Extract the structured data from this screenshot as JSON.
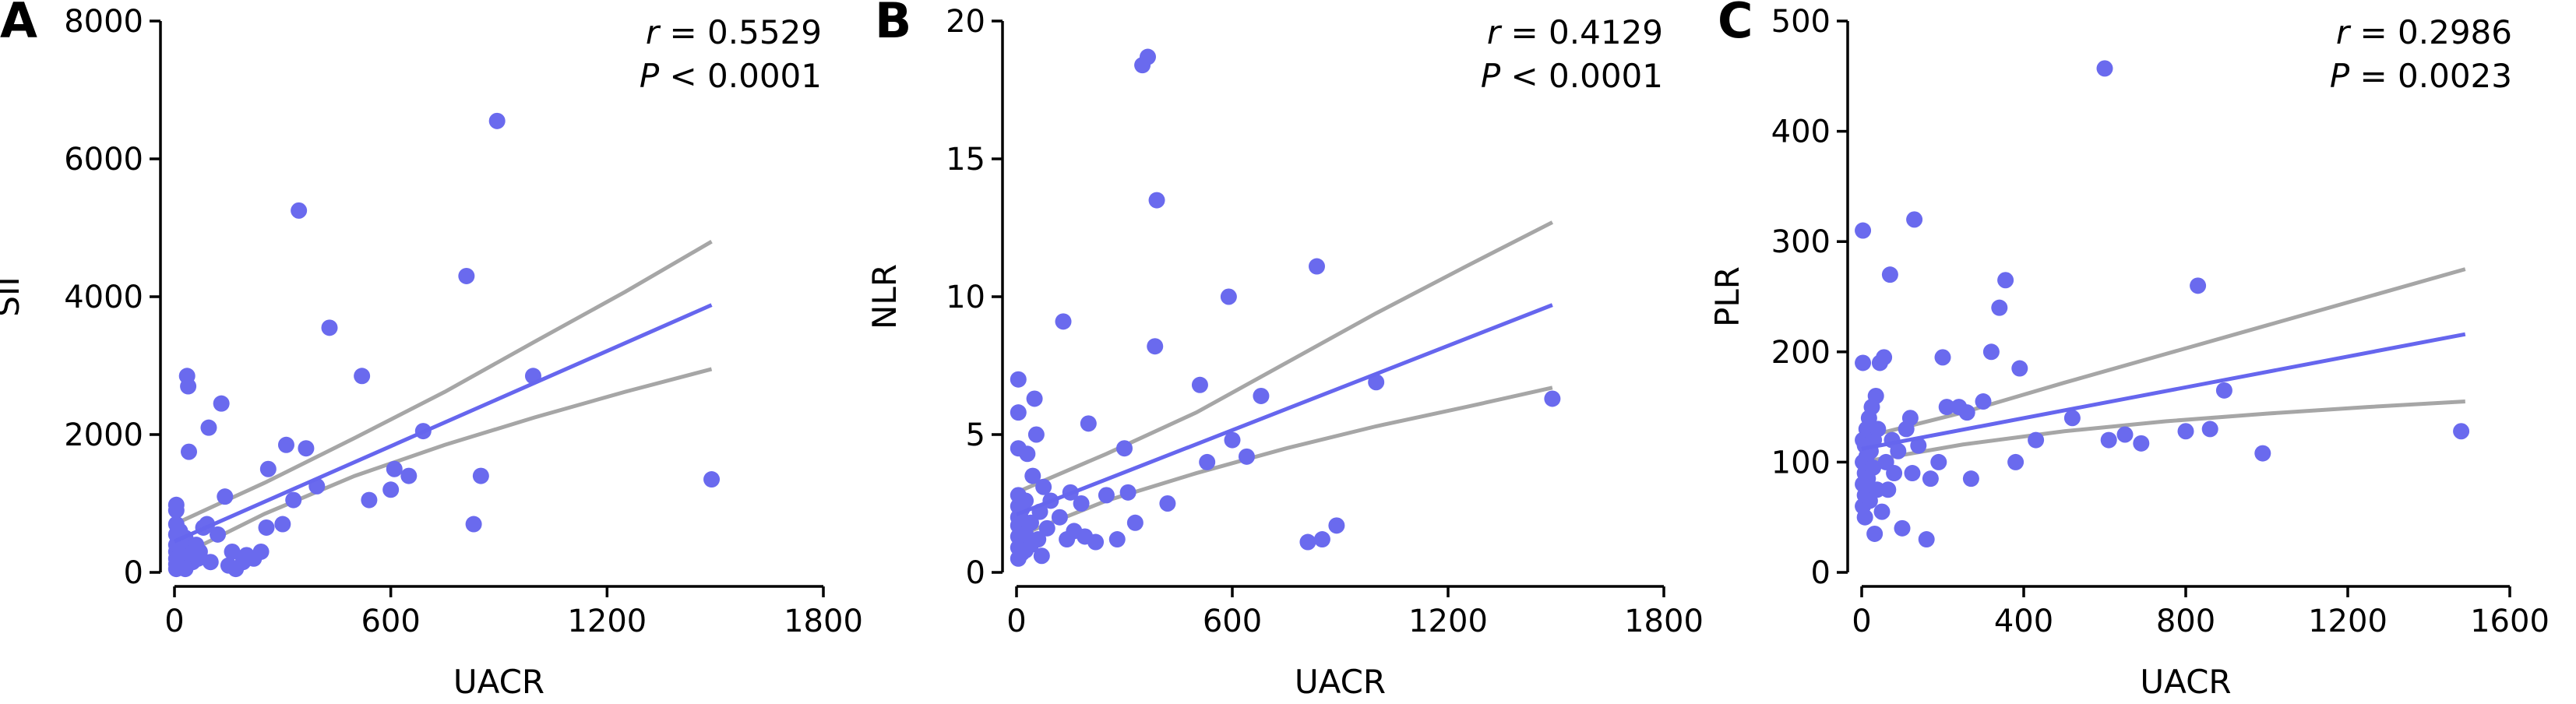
{
  "colors": {
    "points": "#6a6aee",
    "fit_line": "#6666ee",
    "ci_band": "#a6a6a6",
    "axis": "#000000"
  },
  "chart_data": [
    {
      "panel": "A",
      "type": "scatter",
      "xlabel": "UACR",
      "ylabel": "SII",
      "xlim": [
        0,
        1800
      ],
      "ylim": [
        0,
        8000
      ],
      "xticks": [
        "0",
        "600",
        "1200",
        "1800"
      ],
      "yticks": [
        "0",
        "2000",
        "4000",
        "6000",
        "8000"
      ],
      "stats": {
        "r_label": "r",
        "r_value": "= 0.5529",
        "p_label": "P",
        "p_value": "< 0.0001"
      },
      "fit": {
        "x": [
          0,
          1490
        ],
        "y": [
          450,
          3880
        ]
      },
      "ci_upper": {
        "x": [
          0,
          250,
          500,
          750,
          1000,
          1250,
          1490
        ],
        "y": [
          700,
          1300,
          1950,
          2620,
          3350,
          4070,
          4800
        ]
      },
      "ci_lower": {
        "x": [
          0,
          250,
          500,
          750,
          1000,
          1250,
          1490
        ],
        "y": [
          200,
          850,
          1400,
          1850,
          2250,
          2620,
          2950
        ]
      },
      "points": [
        {
          "x": 5,
          "y": 50
        },
        {
          "x": 5,
          "y": 120
        },
        {
          "x": 5,
          "y": 200
        },
        {
          "x": 5,
          "y": 300
        },
        {
          "x": 5,
          "y": 400
        },
        {
          "x": 5,
          "y": 550
        },
        {
          "x": 5,
          "y": 700
        },
        {
          "x": 5,
          "y": 900
        },
        {
          "x": 5,
          "y": 980
        },
        {
          "x": 15,
          "y": 80
        },
        {
          "x": 15,
          "y": 250
        },
        {
          "x": 15,
          "y": 350
        },
        {
          "x": 15,
          "y": 450
        },
        {
          "x": 15,
          "y": 600
        },
        {
          "x": 25,
          "y": 150
        },
        {
          "x": 25,
          "y": 300
        },
        {
          "x": 30,
          "y": 50
        },
        {
          "x": 30,
          "y": 500
        },
        {
          "x": 35,
          "y": 2850
        },
        {
          "x": 38,
          "y": 2700
        },
        {
          "x": 40,
          "y": 1750
        },
        {
          "x": 45,
          "y": 250
        },
        {
          "x": 50,
          "y": 150
        },
        {
          "x": 60,
          "y": 400
        },
        {
          "x": 65,
          "y": 200
        },
        {
          "x": 70,
          "y": 300
        },
        {
          "x": 80,
          "y": 650
        },
        {
          "x": 90,
          "y": 700
        },
        {
          "x": 95,
          "y": 2100
        },
        {
          "x": 100,
          "y": 150
        },
        {
          "x": 120,
          "y": 550
        },
        {
          "x": 130,
          "y": 2450
        },
        {
          "x": 140,
          "y": 1100
        },
        {
          "x": 150,
          "y": 100
        },
        {
          "x": 160,
          "y": 300
        },
        {
          "x": 170,
          "y": 50
        },
        {
          "x": 190,
          "y": 150
        },
        {
          "x": 200,
          "y": 250
        },
        {
          "x": 220,
          "y": 200
        },
        {
          "x": 240,
          "y": 300
        },
        {
          "x": 255,
          "y": 650
        },
        {
          "x": 260,
          "y": 1500
        },
        {
          "x": 300,
          "y": 700
        },
        {
          "x": 310,
          "y": 1850
        },
        {
          "x": 330,
          "y": 1050
        },
        {
          "x": 345,
          "y": 5250
        },
        {
          "x": 365,
          "y": 1800
        },
        {
          "x": 395,
          "y": 1250
        },
        {
          "x": 430,
          "y": 3550
        },
        {
          "x": 520,
          "y": 2850
        },
        {
          "x": 540,
          "y": 1050
        },
        {
          "x": 600,
          "y": 1200
        },
        {
          "x": 610,
          "y": 1500
        },
        {
          "x": 650,
          "y": 1400
        },
        {
          "x": 690,
          "y": 2050
        },
        {
          "x": 810,
          "y": 4300
        },
        {
          "x": 830,
          "y": 700
        },
        {
          "x": 850,
          "y": 1400
        },
        {
          "x": 895,
          "y": 6550
        },
        {
          "x": 995,
          "y": 2850
        },
        {
          "x": 1490,
          "y": 1350
        }
      ]
    },
    {
      "panel": "B",
      "type": "scatter",
      "xlabel": "UACR",
      "ylabel": "NLR",
      "xlim": [
        0,
        1800
      ],
      "ylim": [
        0,
        20
      ],
      "xticks": [
        "0",
        "600",
        "1200",
        "1800"
      ],
      "yticks": [
        "0",
        "5",
        "10",
        "15",
        "20"
      ],
      "stats": {
        "r_label": "r",
        "r_value": "= 0.4129",
        "p_label": "P",
        "p_value": "< 0.0001"
      },
      "fit": {
        "x": [
          0,
          1490
        ],
        "y": [
          2.1,
          9.7
        ]
      },
      "ci_upper": {
        "x": [
          0,
          250,
          500,
          750,
          1000,
          1250,
          1490
        ],
        "y": [
          2.9,
          4.3,
          5.8,
          7.6,
          9.4,
          11.1,
          12.7
        ]
      },
      "ci_lower": {
        "x": [
          0,
          250,
          500,
          750,
          1000,
          1250,
          1490
        ],
        "y": [
          1.3,
          2.6,
          3.6,
          4.5,
          5.3,
          6.0,
          6.7
        ]
      },
      "points": [
        {
          "x": 5,
          "y": 0.5
        },
        {
          "x": 5,
          "y": 0.9
        },
        {
          "x": 5,
          "y": 1.3
        },
        {
          "x": 5,
          "y": 1.7
        },
        {
          "x": 5,
          "y": 2.0
        },
        {
          "x": 5,
          "y": 2.4
        },
        {
          "x": 5,
          "y": 2.8
        },
        {
          "x": 5,
          "y": 4.5
        },
        {
          "x": 5,
          "y": 5.8
        },
        {
          "x": 5,
          "y": 7.0
        },
        {
          "x": 15,
          "y": 0.7
        },
        {
          "x": 15,
          "y": 1.1
        },
        {
          "x": 15,
          "y": 1.5
        },
        {
          "x": 15,
          "y": 1.9
        },
        {
          "x": 15,
          "y": 2.3
        },
        {
          "x": 25,
          "y": 0.8
        },
        {
          "x": 25,
          "y": 1.4
        },
        {
          "x": 25,
          "y": 2.6
        },
        {
          "x": 30,
          "y": 4.3
        },
        {
          "x": 40,
          "y": 1.0
        },
        {
          "x": 40,
          "y": 1.8
        },
        {
          "x": 45,
          "y": 3.5
        },
        {
          "x": 50,
          "y": 6.3
        },
        {
          "x": 55,
          "y": 5.0
        },
        {
          "x": 60,
          "y": 1.2
        },
        {
          "x": 65,
          "y": 2.2
        },
        {
          "x": 70,
          "y": 0.6
        },
        {
          "x": 75,
          "y": 3.1
        },
        {
          "x": 85,
          "y": 1.6
        },
        {
          "x": 95,
          "y": 2.6
        },
        {
          "x": 120,
          "y": 2.0
        },
        {
          "x": 130,
          "y": 9.1
        },
        {
          "x": 140,
          "y": 1.2
        },
        {
          "x": 150,
          "y": 2.9
        },
        {
          "x": 160,
          "y": 1.5
        },
        {
          "x": 180,
          "y": 2.5
        },
        {
          "x": 190,
          "y": 1.3
        },
        {
          "x": 200,
          "y": 5.4
        },
        {
          "x": 220,
          "y": 1.1
        },
        {
          "x": 250,
          "y": 2.8
        },
        {
          "x": 280,
          "y": 1.2
        },
        {
          "x": 300,
          "y": 4.5
        },
        {
          "x": 310,
          "y": 2.9
        },
        {
          "x": 330,
          "y": 1.8
        },
        {
          "x": 350,
          "y": 18.4
        },
        {
          "x": 365,
          "y": 18.7
        },
        {
          "x": 385,
          "y": 8.2
        },
        {
          "x": 390,
          "y": 13.5
        },
        {
          "x": 420,
          "y": 2.5
        },
        {
          "x": 510,
          "y": 6.8
        },
        {
          "x": 530,
          "y": 4.0
        },
        {
          "x": 590,
          "y": 10.0
        },
        {
          "x": 600,
          "y": 4.8
        },
        {
          "x": 640,
          "y": 4.2
        },
        {
          "x": 680,
          "y": 6.4
        },
        {
          "x": 810,
          "y": 1.1
        },
        {
          "x": 835,
          "y": 11.1
        },
        {
          "x": 850,
          "y": 1.2
        },
        {
          "x": 890,
          "y": 1.7
        },
        {
          "x": 1000,
          "y": 6.9
        },
        {
          "x": 1490,
          "y": 6.3
        }
      ]
    },
    {
      "panel": "C",
      "type": "scatter",
      "xlabel": "UACR",
      "ylabel": "PLR",
      "xlim": [
        0,
        1600
      ],
      "ylim": [
        0,
        500
      ],
      "xticks": [
        "0",
        "400",
        "800",
        "1200",
        "1600"
      ],
      "yticks": [
        "0",
        "100",
        "200",
        "300",
        "400",
        "500"
      ],
      "stats": {
        "r_label": "r",
        "r_value": "= 0.2986",
        "p_label": "P",
        "p_value": "= 0.0023"
      },
      "fit": {
        "x": [
          0,
          1490
        ],
        "y": [
          112,
          216
        ]
      },
      "ci_upper": {
        "x": [
          0,
          250,
          500,
          750,
          1000,
          1250,
          1490
        ],
        "y": [
          122,
          145,
          172,
          198,
          224,
          250,
          275
        ]
      },
      "ci_lower": {
        "x": [
          0,
          250,
          500,
          750,
          1000,
          1250,
          1490
        ],
        "y": [
          100,
          116,
          128,
          137,
          144,
          150,
          155
        ]
      },
      "points": [
        {
          "x": 3,
          "y": 310
        },
        {
          "x": 3,
          "y": 190
        },
        {
          "x": 3,
          "y": 120
        },
        {
          "x": 3,
          "y": 100
        },
        {
          "x": 3,
          "y": 80
        },
        {
          "x": 3,
          "y": 60
        },
        {
          "x": 8,
          "y": 115
        },
        {
          "x": 8,
          "y": 90
        },
        {
          "x": 8,
          "y": 70
        },
        {
          "x": 8,
          "y": 50
        },
        {
          "x": 12,
          "y": 130
        },
        {
          "x": 12,
          "y": 105
        },
        {
          "x": 15,
          "y": 85
        },
        {
          "x": 18,
          "y": 140
        },
        {
          "x": 20,
          "y": 65
        },
        {
          "x": 22,
          "y": 110
        },
        {
          "x": 25,
          "y": 150
        },
        {
          "x": 28,
          "y": 95
        },
        {
          "x": 30,
          "y": 120
        },
        {
          "x": 32,
          "y": 35
        },
        {
          "x": 35,
          "y": 160
        },
        {
          "x": 38,
          "y": 75
        },
        {
          "x": 40,
          "y": 130
        },
        {
          "x": 45,
          "y": 190
        },
        {
          "x": 50,
          "y": 55
        },
        {
          "x": 55,
          "y": 195
        },
        {
          "x": 60,
          "y": 100
        },
        {
          "x": 65,
          "y": 75
        },
        {
          "x": 70,
          "y": 270
        },
        {
          "x": 75,
          "y": 120
        },
        {
          "x": 80,
          "y": 90
        },
        {
          "x": 90,
          "y": 110
        },
        {
          "x": 100,
          "y": 40
        },
        {
          "x": 110,
          "y": 130
        },
        {
          "x": 120,
          "y": 140
        },
        {
          "x": 125,
          "y": 90
        },
        {
          "x": 130,
          "y": 320
        },
        {
          "x": 140,
          "y": 115
        },
        {
          "x": 160,
          "y": 30
        },
        {
          "x": 170,
          "y": 85
        },
        {
          "x": 190,
          "y": 100
        },
        {
          "x": 200,
          "y": 195
        },
        {
          "x": 210,
          "y": 150
        },
        {
          "x": 240,
          "y": 150
        },
        {
          "x": 260,
          "y": 145
        },
        {
          "x": 270,
          "y": 85
        },
        {
          "x": 300,
          "y": 155
        },
        {
          "x": 320,
          "y": 200
        },
        {
          "x": 340,
          "y": 240
        },
        {
          "x": 355,
          "y": 265
        },
        {
          "x": 380,
          "y": 100
        },
        {
          "x": 390,
          "y": 185
        },
        {
          "x": 430,
          "y": 120
        },
        {
          "x": 520,
          "y": 140
        },
        {
          "x": 600,
          "y": 457
        },
        {
          "x": 610,
          "y": 120
        },
        {
          "x": 650,
          "y": 125
        },
        {
          "x": 690,
          "y": 117
        },
        {
          "x": 800,
          "y": 128
        },
        {
          "x": 830,
          "y": 260
        },
        {
          "x": 860,
          "y": 130
        },
        {
          "x": 895,
          "y": 165
        },
        {
          "x": 990,
          "y": 108
        },
        {
          "x": 1480,
          "y": 128
        }
      ]
    }
  ]
}
